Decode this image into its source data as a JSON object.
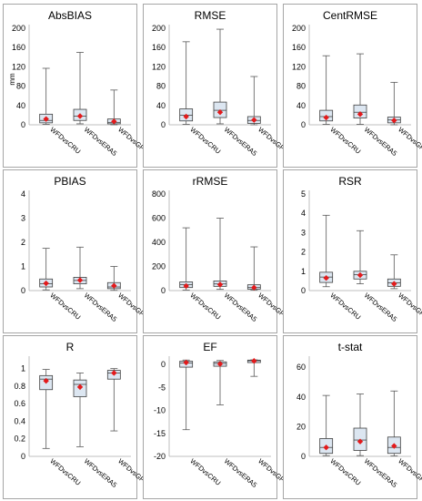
{
  "colors": {
    "box_fill": "#dce6f1",
    "box_stroke": "#404040",
    "whisker": "#595959",
    "mean_marker": "#e31a1c",
    "axis": "#bfbfbf"
  },
  "chart_data": [
    {
      "type": "boxplot",
      "title": "AbsBIAS",
      "ylabel": "mm",
      "ylim": [
        0,
        200
      ],
      "yticks": [
        0,
        40,
        80,
        120,
        160,
        200
      ],
      "categories": [
        "WFDvsCRU",
        "WFDvsERA5",
        "WFDvsGPCC"
      ],
      "series": [
        {
          "min": 1,
          "q1": 4,
          "median": 9,
          "q3": 22,
          "max": 117,
          "mean": 12
        },
        {
          "min": 2,
          "q1": 9,
          "median": 18,
          "q3": 32,
          "max": 150,
          "mean": 18
        },
        {
          "min": 0,
          "q1": 2,
          "median": 5,
          "q3": 12,
          "max": 72,
          "mean": 7
        }
      ]
    },
    {
      "type": "boxplot",
      "title": "RMSE",
      "ylabel": "",
      "ylim": [
        0,
        200
      ],
      "yticks": [
        0,
        40,
        80,
        120,
        160,
        200
      ],
      "categories": [
        "WFDvsCRU",
        "WFDvsERA5",
        "WFDvsGPCC"
      ],
      "series": [
        {
          "min": 1,
          "q1": 8,
          "median": 20,
          "q3": 33,
          "max": 172,
          "mean": 17
        },
        {
          "min": 2,
          "q1": 15,
          "median": 30,
          "q3": 47,
          "max": 198,
          "mean": 26
        },
        {
          "min": 0,
          "q1": 3,
          "median": 9,
          "q3": 17,
          "max": 100,
          "mean": 10
        }
      ]
    },
    {
      "type": "boxplot",
      "title": "CentRMSE",
      "ylabel": "",
      "ylim": [
        0,
        200
      ],
      "yticks": [
        0,
        40,
        80,
        120,
        160,
        200
      ],
      "categories": [
        "WFDvsCRU",
        "WFDvsERA5",
        "WFDvsGPCC"
      ],
      "series": [
        {
          "min": 1,
          "q1": 8,
          "median": 17,
          "q3": 30,
          "max": 143,
          "mean": 15
        },
        {
          "min": 1,
          "q1": 14,
          "median": 26,
          "q3": 41,
          "max": 147,
          "mean": 22
        },
        {
          "min": 0,
          "q1": 4,
          "median": 10,
          "q3": 16,
          "max": 88,
          "mean": 9
        }
      ]
    },
    {
      "type": "boxplot",
      "title": "PBIAS",
      "ylabel": "",
      "ylim": [
        0,
        4
      ],
      "yticks": [
        0,
        1,
        2,
        3,
        4
      ],
      "categories": [
        "WFDvsCRU",
        "WFDvsERA5",
        "WFDvsGPCC"
      ],
      "series": [
        {
          "min": 0.03,
          "q1": 0.15,
          "median": 0.28,
          "q3": 0.48,
          "max": 1.75,
          "mean": 0.3
        },
        {
          "min": 0.08,
          "q1": 0.28,
          "median": 0.42,
          "q3": 0.55,
          "max": 1.8,
          "mean": 0.43
        },
        {
          "min": 0.01,
          "q1": 0.08,
          "median": 0.15,
          "q3": 0.33,
          "max": 1.0,
          "mean": 0.2
        }
      ]
    },
    {
      "type": "boxplot",
      "title": "rRMSE",
      "ylabel": "",
      "ylim": [
        0,
        800
      ],
      "yticks": [
        0,
        200,
        400,
        600,
        800
      ],
      "categories": [
        "WFDvsCRU",
        "WFDvsERA5",
        "WFDvsGPCC"
      ],
      "series": [
        {
          "min": 5,
          "q1": 25,
          "median": 50,
          "q3": 72,
          "max": 520,
          "mean": 38
        },
        {
          "min": 10,
          "q1": 35,
          "median": 55,
          "q3": 80,
          "max": 600,
          "mean": 50
        },
        {
          "min": 3,
          "q1": 12,
          "median": 25,
          "q3": 48,
          "max": 362,
          "mean": 25
        }
      ]
    },
    {
      "type": "boxplot",
      "title": "RSR",
      "ylabel": "",
      "ylim": [
        0,
        5
      ],
      "yticks": [
        0,
        1,
        2,
        3,
        4,
        5
      ],
      "categories": [
        "WFDvsCRU",
        "WFDvsERA5",
        "WFDvsGPCC"
      ],
      "series": [
        {
          "min": 0.2,
          "q1": 0.42,
          "median": 0.7,
          "q3": 0.95,
          "max": 3.9,
          "mean": 0.65
        },
        {
          "min": 0.35,
          "q1": 0.6,
          "median": 0.82,
          "q3": 1.0,
          "max": 3.1,
          "mean": 0.8
        },
        {
          "min": 0.1,
          "q1": 0.22,
          "median": 0.4,
          "q3": 0.6,
          "max": 1.85,
          "mean": 0.35
        }
      ]
    },
    {
      "type": "boxplot",
      "title": "R",
      "ylabel": "",
      "ylim": [
        0,
        1.1
      ],
      "yticks": [
        0,
        0.2,
        0.4,
        0.6,
        0.8,
        1
      ],
      "categories": [
        "WFDvsCRU",
        "WFDvsERA5",
        "WFDvsGPCC"
      ],
      "series": [
        {
          "min": 0.09,
          "q1": 0.76,
          "median": 0.88,
          "q3": 0.92,
          "max": 0.99,
          "mean": 0.86
        },
        {
          "min": 0.11,
          "q1": 0.68,
          "median": 0.82,
          "q3": 0.87,
          "max": 0.95,
          "mean": 0.79
        },
        {
          "min": 0.29,
          "q1": 0.88,
          "median": 0.95,
          "q3": 0.98,
          "max": 1.0,
          "mean": 0.95
        }
      ]
    },
    {
      "type": "boxplot",
      "title": "EF",
      "ylabel": "",
      "ylim": [
        -20,
        1
      ],
      "yticks": [
        0,
        -5,
        -10,
        -15,
        -20
      ],
      "categories": [
        "WFDvsCRU",
        "WFDvsERA5",
        "WFDvsGPCC"
      ],
      "series": [
        {
          "min": -14.2,
          "q1": -0.6,
          "median": 0.3,
          "q3": 0.7,
          "max": 0.95,
          "mean": 0.4
        },
        {
          "min": -8.8,
          "q1": -0.4,
          "median": 0.2,
          "q3": 0.55,
          "max": 0.85,
          "mean": 0.1
        },
        {
          "min": -2.6,
          "q1": 0.4,
          "median": 0.8,
          "q3": 0.93,
          "max": 0.99,
          "mean": 0.75
        }
      ]
    },
    {
      "type": "boxplot",
      "title": "t-stat",
      "ylabel": "",
      "ylim": [
        0,
        65
      ],
      "yticks": [
        0,
        20,
        40,
        60
      ],
      "categories": [
        "WFDvsCRU",
        "WFDvsERA5",
        "WFDvsGPCC"
      ],
      "series": [
        {
          "min": 0.5,
          "q1": 2,
          "median": 6,
          "q3": 12,
          "max": 41,
          "mean": 6
        },
        {
          "min": 0.5,
          "q1": 4,
          "median": 11,
          "q3": 19,
          "max": 42,
          "mean": 10
        },
        {
          "min": 0.3,
          "q1": 2,
          "median": 6,
          "q3": 13,
          "max": 44,
          "mean": 7
        }
      ]
    }
  ]
}
